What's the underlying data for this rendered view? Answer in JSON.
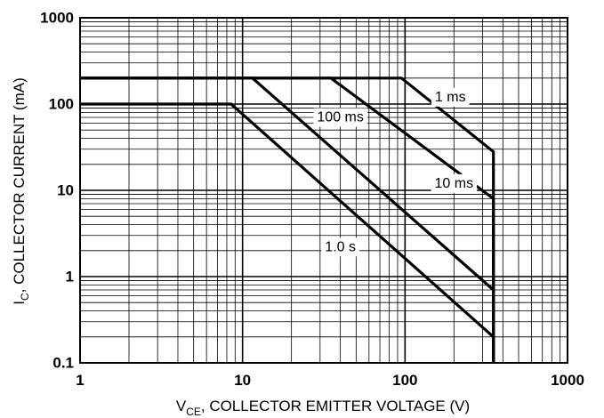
{
  "chart_data": {
    "type": "line",
    "xscale": "log",
    "yscale": "log",
    "xlim": [
      1,
      1000
    ],
    "ylim": [
      0.1,
      1000
    ],
    "xlabel": {
      "main": "V",
      "sub": "CE",
      "rest": ", COLLECTOR EMITTER VOLTAGE (V)"
    },
    "ylabel": {
      "main": "I",
      "sub": "C",
      "rest": ", COLLECTOR CURRENT (mA)"
    },
    "x_ticks": [
      {
        "value": 1,
        "label": "1"
      },
      {
        "value": 10,
        "label": "10"
      },
      {
        "value": 100,
        "label": "100"
      },
      {
        "value": 1000,
        "label": "1000"
      }
    ],
    "y_ticks": [
      {
        "value": 0.1,
        "label": "0.1"
      },
      {
        "value": 1,
        "label": "1"
      },
      {
        "value": 10,
        "label": "10"
      },
      {
        "value": 100,
        "label": "100"
      },
      {
        "value": 1000,
        "label": "1000"
      }
    ],
    "grid": true,
    "series": [
      {
        "name": "1 ms",
        "x": [
          1,
          95,
          350,
          350
        ],
        "y": [
          200,
          200,
          28,
          0.1
        ]
      },
      {
        "name": "100 ms",
        "x": [
          1,
          35,
          350,
          350
        ],
        "y": [
          200,
          200,
          8,
          0.1
        ]
      },
      {
        "name": "10 ms",
        "x": [
          1,
          11.5,
          350,
          350
        ],
        "y": [
          200,
          200,
          0.7,
          0.1
        ]
      },
      {
        "name": "1.0 s",
        "x": [
          1,
          8.5,
          350,
          350
        ],
        "y": [
          100,
          100,
          0.2,
          0.1
        ]
      }
    ],
    "annotations": [
      {
        "text": "1 ms",
        "x": 190,
        "y": 120
      },
      {
        "text": "100 ms",
        "x": 40,
        "y": 70
      },
      {
        "text": "10 ms",
        "x": 200,
        "y": 12
      },
      {
        "text": "1.0 s",
        "x": 40,
        "y": 2.2
      }
    ]
  }
}
